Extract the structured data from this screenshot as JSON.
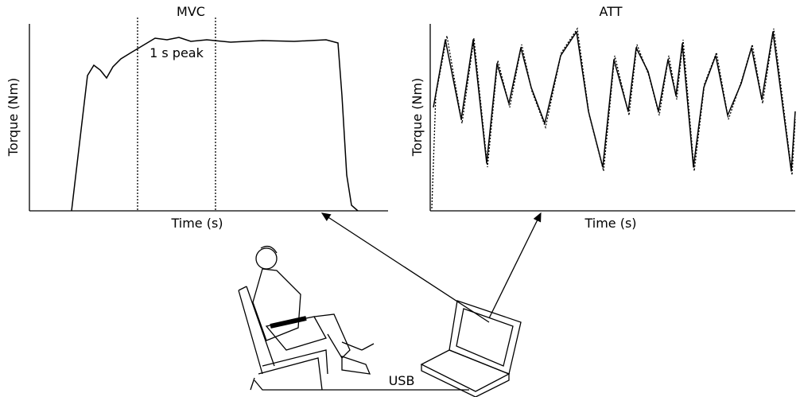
{
  "figure": {
    "mvc_panel": {
      "title": "MVC",
      "y_label": "Torque (Nm)",
      "x_label": "Time (s)",
      "annotation": "1 s peak"
    },
    "att_panel": {
      "title": "ATT",
      "y_label": "Torque (Nm)",
      "x_label": "Time (s)"
    },
    "connection_label": "USB"
  }
}
